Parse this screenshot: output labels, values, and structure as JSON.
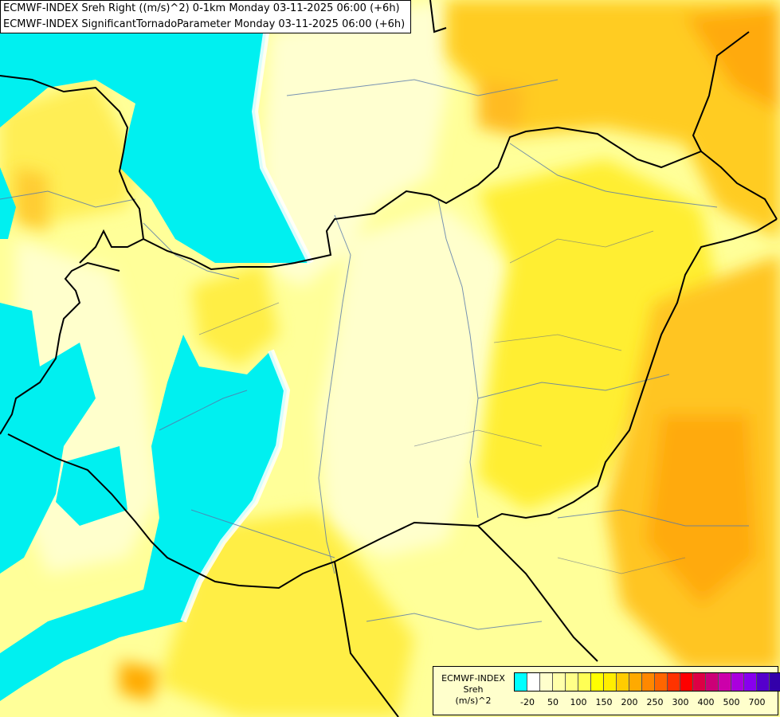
{
  "title": {
    "line1": "ECMWF-INDEX Sreh Right ((m/s)^2) 0-1km Monday 03-11-2025 06:00 (+6h)",
    "line2": "ECMWF-INDEX SignificantTornadoParameter Monday 03-11-2025 06:00 (+6h)"
  },
  "legend": {
    "model": "ECMWF-INDEX",
    "variable": "Sreh",
    "unit": "(m/s)^2",
    "colors": [
      "#00ffff",
      "#ffffff",
      "#ffffcc",
      "#ffffaa",
      "#ffff88",
      "#ffff55",
      "#ffff00",
      "#ffee00",
      "#ffcc00",
      "#ffaa00",
      "#ff8800",
      "#ff6600",
      "#ff3300",
      "#ff0000",
      "#dd0044",
      "#cc0077",
      "#cc00aa",
      "#aa00dd",
      "#8800ee",
      "#5500cc",
      "#3300aa",
      "#000088"
    ],
    "ticks": [
      {
        "label": "-20",
        "index": 1
      },
      {
        "label": "50",
        "index": 3
      },
      {
        "label": "100",
        "index": 5
      },
      {
        "label": "150",
        "index": 7
      },
      {
        "label": "200",
        "index": 9
      },
      {
        "label": "250",
        "index": 11
      },
      {
        "label": "300",
        "index": 13
      },
      {
        "label": "400",
        "index": 15
      },
      {
        "label": "500",
        "index": 17
      },
      {
        "label": "700",
        "index": 19
      }
    ]
  }
}
